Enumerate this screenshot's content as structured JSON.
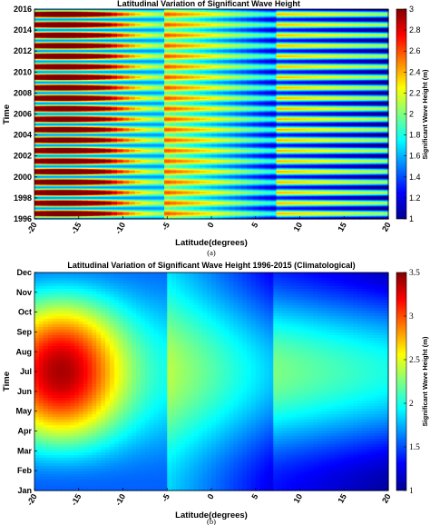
{
  "chart_data": [
    {
      "type": "heatmap",
      "title": "Latitudinal Variation of Significant Wave Height",
      "xlabel": "Latitude(degrees)",
      "ylabel": "Time",
      "xlim": [
        -20,
        20
      ],
      "ylim": [
        1996,
        2016
      ],
      "x_ticks": [
        "-20",
        "-15",
        "-10",
        "-5",
        "0",
        "5",
        "10",
        "15",
        "20"
      ],
      "y_ticks": [
        "1996",
        "1998",
        "2000",
        "2002",
        "2004",
        "2006",
        "2008",
        "2010",
        "2012",
        "2014",
        "2016"
      ],
      "colorbar": {
        "label": "Significant Wave Height (m)",
        "range": [
          1,
          3
        ],
        "ticks": [
          "1",
          "1.2",
          "1.4",
          "1.6",
          "1.8",
          "2",
          "2.2",
          "2.4",
          "2.6",
          "2.8",
          "3"
        ]
      },
      "caption": "(a)"
    },
    {
      "type": "heatmap",
      "title": "Latitudinal Variation of Significant Wave Height 1996-2015 (Climatological)",
      "xlabel": "Latitude(degrees)",
      "ylabel": "Time",
      "xlim": [
        -20,
        20
      ],
      "x_ticks": [
        "-20",
        "-15",
        "-10",
        "-5",
        "0",
        "5",
        "10",
        "15",
        "20"
      ],
      "y_ticks": [
        "Jan",
        "Feb",
        "Mar",
        "Apr",
        "May",
        "Jun",
        "Jul",
        "Aug",
        "Sep",
        "Oct",
        "Nov",
        "Dec"
      ],
      "colorbar": {
        "label": "Significant Wave Height (m)",
        "range": [
          1,
          3.5
        ],
        "ticks": [
          "1",
          "1.5",
          "2",
          "2.5",
          "3",
          "3.5"
        ]
      },
      "caption": "(b)"
    }
  ]
}
